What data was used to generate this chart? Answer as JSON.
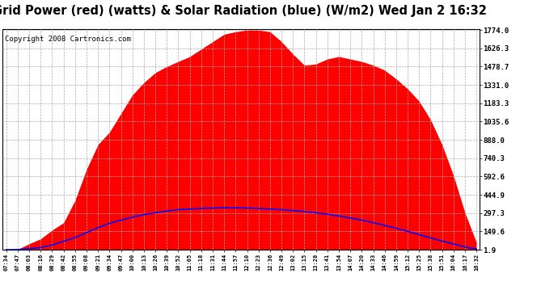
{
  "title": "Grid Power (red) (watts) & Solar Radiation (blue) (W/m2) Wed Jan 2 16:32",
  "copyright": "Copyright 2008 Cartronics.com",
  "yticks": [
    1.9,
    149.6,
    297.3,
    444.9,
    592.6,
    740.3,
    888.0,
    1035.6,
    1183.3,
    1331.0,
    1478.7,
    1626.3,
    1774.0
  ],
  "ymin": 0,
  "ymax": 1774.0,
  "xtick_labels": [
    "07:34",
    "07:47",
    "08:03",
    "08:16",
    "08:29",
    "08:42",
    "08:55",
    "09:08",
    "09:21",
    "09:34",
    "09:47",
    "10:00",
    "10:13",
    "10:26",
    "10:39",
    "10:52",
    "11:05",
    "11:18",
    "11:31",
    "11:44",
    "11:57",
    "12:10",
    "12:23",
    "12:36",
    "12:49",
    "13:02",
    "13:15",
    "13:28",
    "13:41",
    "13:54",
    "14:07",
    "14:20",
    "14:33",
    "14:46",
    "14:59",
    "15:12",
    "15:25",
    "15:38",
    "15:51",
    "16:04",
    "16:17",
    "16:32"
  ],
  "bg_color": "#ffffff",
  "plot_bg_color": "#ffffff",
  "grid_color": "#aaaaaa",
  "red_fill_color": "#ff0000",
  "blue_line_color": "#0000ff",
  "title_fontsize": 10.5,
  "copyright_fontsize": 6.5,
  "red_vals": [
    0,
    5,
    50,
    90,
    160,
    220,
    400,
    650,
    850,
    950,
    1100,
    1250,
    1350,
    1430,
    1480,
    1520,
    1560,
    1620,
    1680,
    1740,
    1760,
    1774,
    1774,
    1760,
    1680,
    1580,
    1490,
    1500,
    1540,
    1560,
    1540,
    1520,
    1490,
    1450,
    1380,
    1300,
    1200,
    1050,
    850,
    600,
    300,
    60
  ],
  "blue_vals": [
    2,
    3,
    10,
    20,
    40,
    70,
    100,
    140,
    180,
    215,
    240,
    265,
    285,
    300,
    315,
    325,
    330,
    335,
    338,
    340,
    340,
    338,
    335,
    330,
    325,
    318,
    310,
    300,
    288,
    274,
    258,
    240,
    220,
    198,
    175,
    150,
    124,
    98,
    72,
    48,
    25,
    8
  ]
}
